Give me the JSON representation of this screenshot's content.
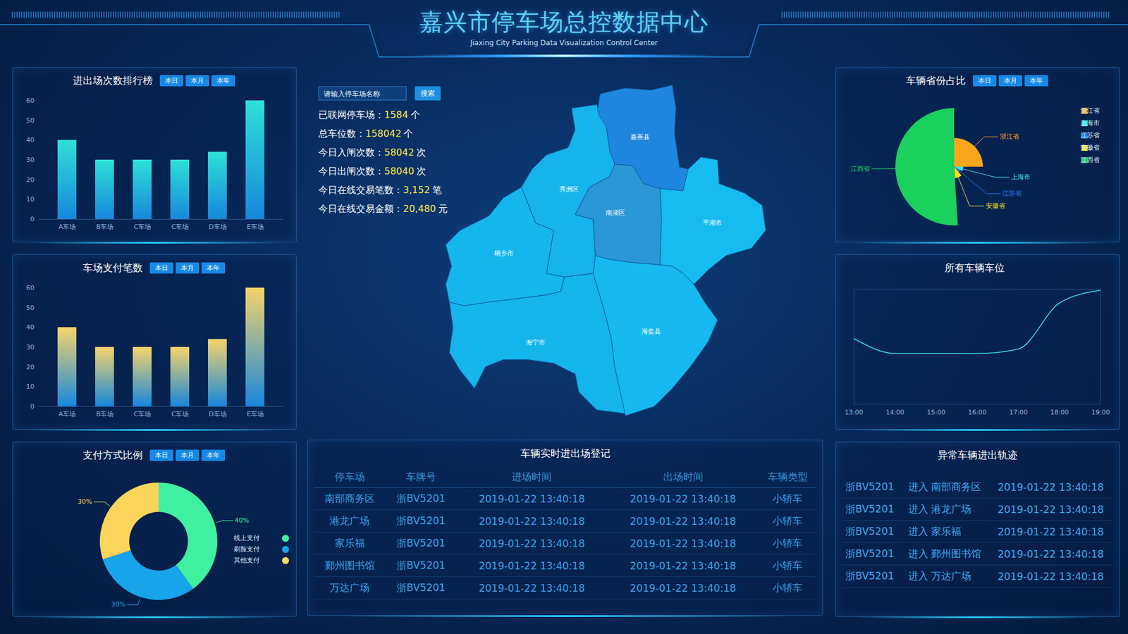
{
  "header": {
    "title": "嘉兴市停车场总控数据中心",
    "subtitle": "Jiaxing City Parking Data Visualization Control Center"
  },
  "search": {
    "placeholder": "请输入停车场名称",
    "button": "搜索"
  },
  "stats": [
    {
      "label": "已联网停车场：",
      "value": "1584",
      "unit": "个"
    },
    {
      "label": "总车位数：",
      "value": "158042",
      "unit": "个"
    },
    {
      "label": "今日入闸次数：",
      "value": "58042",
      "unit": "次"
    },
    {
      "label": "今日出闸次数：",
      "value": "58040",
      "unit": "次"
    },
    {
      "label": "今日在线交易笔数：",
      "value": "3,152",
      "unit": "笔"
    },
    {
      "label": "今日在线交易金额：",
      "value": "20,480",
      "unit": "元"
    }
  ],
  "map": {
    "regions": [
      "嘉善县",
      "秀洲区",
      "南湖区",
      "平湖市",
      "桐乡市",
      "海宁市",
      "海盐县"
    ]
  },
  "chart_data": [
    {
      "type": "bar",
      "title": "进出场次数排行榜",
      "buttons": [
        "本日",
        "本月",
        "本年"
      ],
      "categories": [
        "A车场",
        "B车场",
        "C车场",
        "C车场",
        "D车场",
        "E车场"
      ],
      "values": [
        40,
        30,
        30,
        30,
        34,
        60
      ],
      "color": "#2ee0d8",
      "ylim": [
        0,
        60
      ],
      "yticks": [
        0,
        10,
        20,
        30,
        40,
        50,
        60
      ],
      "grid": false
    },
    {
      "type": "bar",
      "title": "车场支付笔数",
      "buttons": [
        "本日",
        "本月",
        "本年"
      ],
      "categories": [
        "A车场",
        "B车场",
        "C车场",
        "C车场",
        "D车场",
        "E车场"
      ],
      "values": [
        40,
        30,
        30,
        30,
        34,
        60
      ],
      "color": "#f6d46a",
      "ylim": [
        0,
        60
      ],
      "yticks": [
        0,
        10,
        20,
        30,
        40,
        50,
        60
      ],
      "grid": false
    },
    {
      "type": "donut",
      "title": "支付方式比例",
      "buttons": [
        "本日",
        "本月",
        "本年"
      ],
      "categories": [
        "线上支付",
        "刷脸支付",
        "其他支付"
      ],
      "values": [
        40,
        30,
        30
      ],
      "value_labels": [
        "40%",
        "30%",
        "30%"
      ],
      "colors": [
        "#3ef0a0",
        "#17a4ea",
        "#fbd45c"
      ],
      "data_labels": true,
      "legend": "right"
    },
    {
      "type": "rose",
      "title": "车辆省份占比",
      "buttons": [
        "本日",
        "本月",
        "本年"
      ],
      "categories": [
        "浙江省",
        "上海市",
        "江苏省",
        "安徽省",
        "江西省"
      ],
      "values": [
        25,
        8,
        6,
        10,
        51
      ],
      "colors": [
        "#f7a51d",
        "#3de6ee",
        "#1f7ff0",
        "#f5e21e",
        "#19d15c"
      ],
      "legend": "right"
    },
    {
      "type": "line",
      "title": "所有车辆车位",
      "x": [
        "13:00",
        "14:00",
        "15:00",
        "16:00",
        "17:00",
        "18:00",
        "19:00"
      ],
      "values": [
        57,
        44,
        44,
        44,
        48,
        88,
        99
      ],
      "color": "#3fd8e0",
      "ylim": [
        0,
        100
      ],
      "tick_labels": "x",
      "grid": false
    }
  ],
  "tables": [
    {
      "title": "车辆实时进出场登记",
      "columns": [
        "停车场",
        "车牌号",
        "进场时间",
        "出场时间",
        "车辆类型"
      ],
      "rows": [
        [
          "南部商务区",
          "浙BV5201",
          "2019-01-22 13:40:18",
          "2019-01-22 13:40:18",
          "小轿车"
        ],
        [
          "港龙广场",
          "浙BV5201",
          "2019-01-22 13:40:18",
          "2019-01-22 13:40:18",
          "小轿车"
        ],
        [
          "家乐福",
          "浙BV5201",
          "2019-01-22 13:40:18",
          "2019-01-22 13:40:18",
          "小轿车"
        ],
        [
          "鄞州图书馆",
          "浙BV5201",
          "2019-01-22 13:40:18",
          "2019-01-22 13:40:18",
          "小轿车"
        ],
        [
          "万达广场",
          "浙BV5201",
          "2019-01-22 13:40:18",
          "2019-01-22 13:40:18",
          "小轿车"
        ]
      ]
    },
    {
      "title": "异常车辆进出轨迹",
      "rows": [
        [
          "浙BV5201",
          "进入 南部商务区",
          "2019-01-22 13:40:18"
        ],
        [
          "浙BV5201",
          "进入 港龙广场",
          "2019-01-22 13:40:18"
        ],
        [
          "浙BV5201",
          "进入 家乐福",
          "2019-01-22 13:40:18"
        ],
        [
          "浙BV5201",
          "进入 鄞州图书馆",
          "2019-01-22 13:40:18"
        ],
        [
          "浙BV5201",
          "进入 万达广场",
          "2019-01-22 13:40:18"
        ]
      ]
    }
  ]
}
